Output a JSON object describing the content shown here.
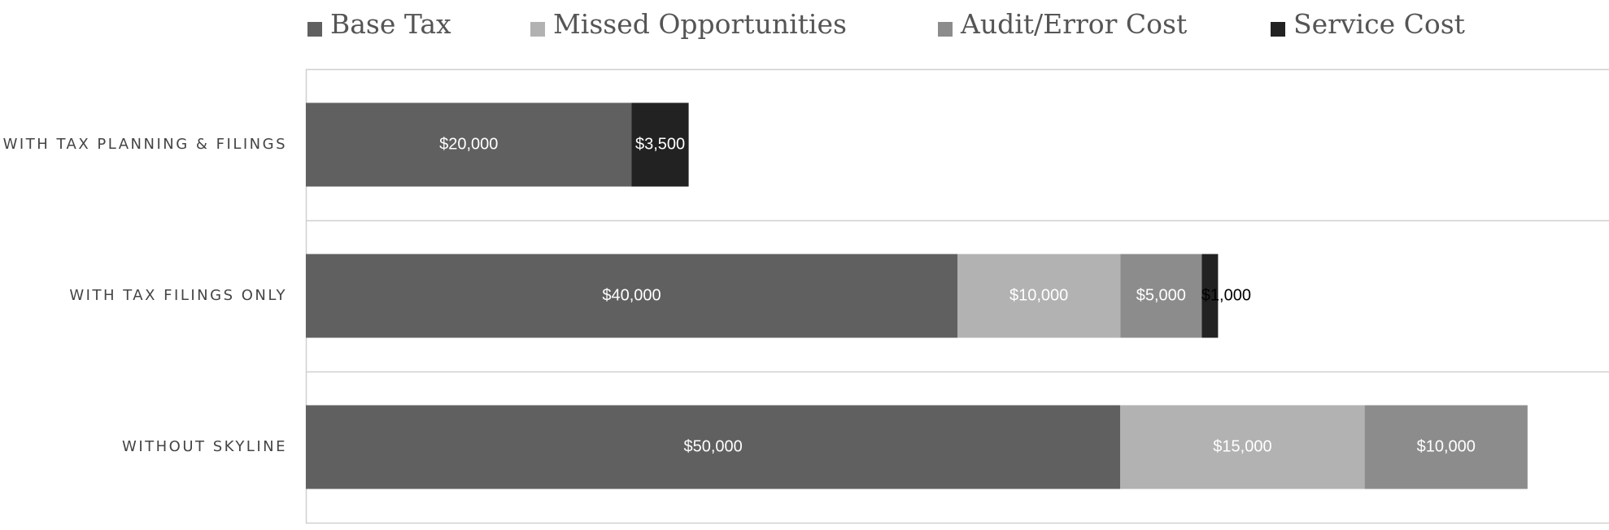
{
  "chart_data": {
    "type": "stacked-bar-horizontal",
    "categories": [
      "WITH TAX PLANNING & FILINGS",
      "WITH TAX FILINGS ONLY",
      "WITHOUT SKYLINE"
    ],
    "series": [
      {
        "name": "Base Tax",
        "color": "#606060",
        "values": [
          20000,
          40000,
          50000
        ],
        "value_labels": [
          "$20,000",
          "$40,000",
          "$50,000"
        ]
      },
      {
        "name": "Missed Opportunities",
        "color": "#b2b2b2",
        "values": [
          null,
          10000,
          15000
        ],
        "value_labels": [
          null,
          "$10,000",
          "$15,000"
        ]
      },
      {
        "name": "Audit/Error Cost",
        "color": "#8c8c8c",
        "values": [
          null,
          5000,
          10000
        ],
        "value_labels": [
          null,
          "$5,000",
          "$10,000"
        ]
      },
      {
        "name": "Service Cost",
        "color": "#222222",
        "values": [
          3500,
          1000,
          null
        ],
        "value_labels": [
          "$3,500",
          "$1,000",
          null
        ]
      }
    ],
    "xlim": [
      0,
      80000
    ],
    "legend": "top"
  }
}
